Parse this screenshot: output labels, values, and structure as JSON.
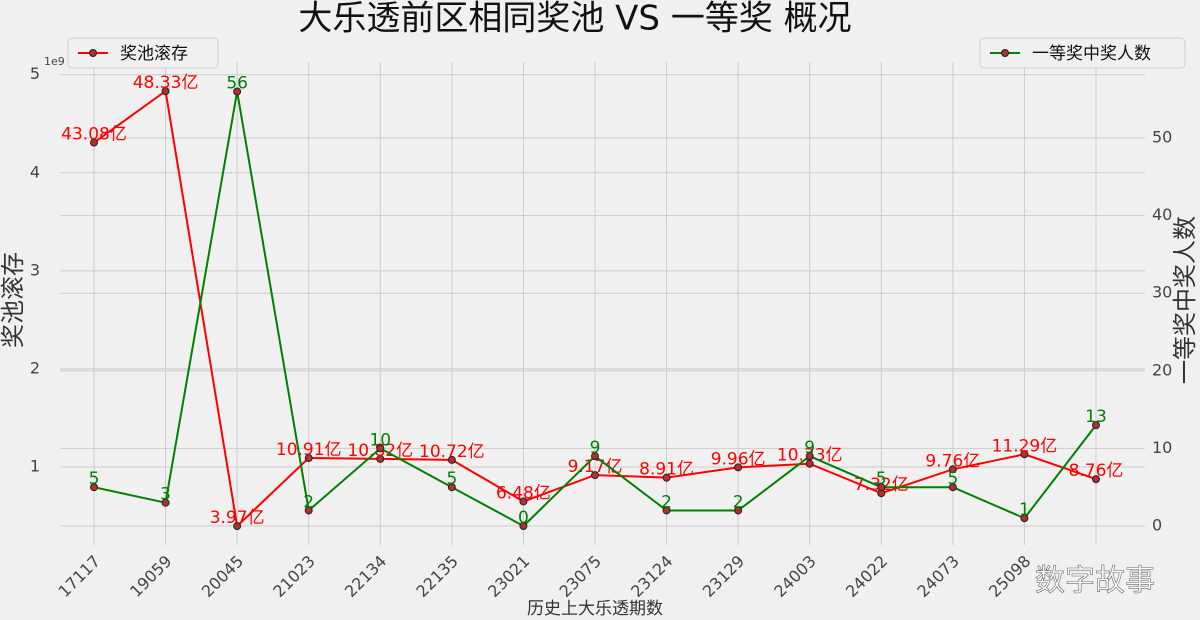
{
  "chart_data": {
    "type": "line",
    "title": "大乐透前区相同奖池 VS 一等奖 概况",
    "x_label": "历史上大乐透期数",
    "y_label": "奖池滚存",
    "y2_label": "一等奖中奖人数",
    "y_offset_label": "1e9",
    "watermark": "数字故事",
    "categories": [
      "17117",
      "19059",
      "20045",
      "21023",
      "22134",
      "22135",
      "23021",
      "23075",
      "23124",
      "23129",
      "24003",
      "24022",
      "24073",
      "25098",
      null
    ],
    "series": [
      {
        "name": "奖池滚存",
        "color": "#ff0000",
        "axis": "y",
        "legend": "upper left",
        "values": [
          4308000000,
          4833000000,
          397000000,
          1091000000,
          1082000000,
          1072000000,
          648000000,
          917000000,
          891000000,
          996000000,
          1033000000,
          732000000,
          976000000,
          1129000000,
          876000000
        ],
        "value_labels": [
          "43.08亿",
          "48.33亿",
          "3.97亿",
          "10.91亿",
          "10.82亿",
          "10.72亿",
          "6.48亿",
          "9.17亿",
          "8.91亿",
          "9.96亿",
          "10.33亿",
          "7.32亿",
          "9.76亿",
          "11.29亿",
          "8.76亿"
        ]
      },
      {
        "name": "一等奖中奖人数",
        "color": "#008000",
        "axis": "y2",
        "legend": "upper right",
        "values": [
          5,
          3,
          56,
          2,
          10,
          5,
          0,
          9,
          2,
          2,
          9,
          5,
          5,
          1,
          13
        ]
      }
    ],
    "ylim": [
      204000000,
      5130000000
    ],
    "yticks": [
      {
        "value": 1000000000,
        "label": "1"
      },
      {
        "value": 2000000000,
        "label": "2"
      },
      {
        "value": 3000000000,
        "label": "3"
      },
      {
        "value": 4000000000,
        "label": "4"
      },
      {
        "value": 5000000000,
        "label": "5"
      }
    ],
    "y2lim": [
      -2.45,
      59.8
    ],
    "y2ticks": [
      0,
      10,
      20,
      30,
      40,
      50
    ],
    "grid": true
  }
}
